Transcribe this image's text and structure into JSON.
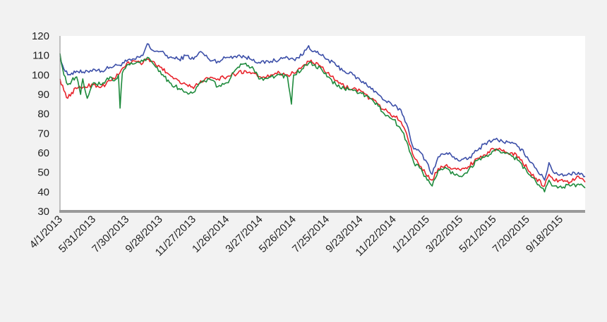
{
  "chart_data": {
    "type": "line",
    "ylim": [
      30,
      120
    ],
    "yticks": [
      "30",
      "40",
      "50",
      "60",
      "70",
      "80",
      "90",
      "100",
      "110",
      "120"
    ],
    "xlim": [
      "2013-04-01",
      "2015-11-01"
    ],
    "xticks": [
      {
        "date": "2013-04-01",
        "label": "4/1/2013"
      },
      {
        "date": "2013-05-31",
        "label": "5/31/2013"
      },
      {
        "date": "2013-07-30",
        "label": "7/30/2013"
      },
      {
        "date": "2013-09-28",
        "label": "9/28/2013"
      },
      {
        "date": "2013-11-27",
        "label": "11/27/2013"
      },
      {
        "date": "2014-01-26",
        "label": "1/26/2014"
      },
      {
        "date": "2014-03-27",
        "label": "3/27/2014"
      },
      {
        "date": "2014-05-26",
        "label": "5/26/2014"
      },
      {
        "date": "2014-07-25",
        "label": "7/25/2014"
      },
      {
        "date": "2014-09-23",
        "label": "9/23/2014"
      },
      {
        "date": "2014-11-22",
        "label": "11/22/2014"
      },
      {
        "date": "2015-01-21",
        "label": "1/21/2015"
      },
      {
        "date": "2015-03-22",
        "label": "3/22/2015"
      },
      {
        "date": "2015-05-21",
        "label": "5/21/2015"
      },
      {
        "date": "2015-07-20",
        "label": "7/20/2015"
      },
      {
        "date": "2015-09-18",
        "label": "9/18/2015"
      }
    ],
    "grid": false,
    "legend": "none",
    "series": [
      {
        "color": "#3b4ea8",
        "points": [
          [
            "2013-04-01",
            110
          ],
          [
            "2013-04-08",
            103
          ],
          [
            "2013-04-15",
            100
          ],
          [
            "2013-04-22",
            101
          ],
          [
            "2013-05-01",
            102
          ],
          [
            "2013-05-15",
            101
          ],
          [
            "2013-05-31",
            103
          ],
          [
            "2013-06-15",
            102
          ],
          [
            "2013-06-30",
            104
          ],
          [
            "2013-07-15",
            105
          ],
          [
            "2013-07-30",
            107
          ],
          [
            "2013-08-15",
            108
          ],
          [
            "2013-08-28",
            110
          ],
          [
            "2013-09-05",
            116
          ],
          [
            "2013-09-12",
            113
          ],
          [
            "2013-09-28",
            112
          ],
          [
            "2013-10-15",
            109
          ],
          [
            "2013-11-01",
            108
          ],
          [
            "2013-11-15",
            110
          ],
          [
            "2013-11-27",
            108
          ],
          [
            "2013-12-10",
            112
          ],
          [
            "2013-12-25",
            108
          ],
          [
            "2014-01-10",
            107
          ],
          [
            "2014-01-26",
            109
          ],
          [
            "2014-02-15",
            110
          ],
          [
            "2014-03-01",
            109
          ],
          [
            "2014-03-15",
            108
          ],
          [
            "2014-03-27",
            106
          ],
          [
            "2014-04-15",
            107
          ],
          [
            "2014-05-01",
            108
          ],
          [
            "2014-05-15",
            109
          ],
          [
            "2014-05-26",
            108
          ],
          [
            "2014-06-10",
            110
          ],
          [
            "2014-06-22",
            115
          ],
          [
            "2014-07-01",
            112
          ],
          [
            "2014-07-15",
            110
          ],
          [
            "2014-07-25",
            108
          ],
          [
            "2014-08-10",
            105
          ],
          [
            "2014-08-25",
            102
          ],
          [
            "2014-09-10",
            100
          ],
          [
            "2014-09-23",
            97
          ],
          [
            "2014-10-10",
            94
          ],
          [
            "2014-10-25",
            90
          ],
          [
            "2014-11-05",
            87
          ],
          [
            "2014-11-22",
            84
          ],
          [
            "2014-12-05",
            82
          ],
          [
            "2014-12-15",
            75
          ],
          [
            "2014-12-28",
            62
          ],
          [
            "2015-01-10",
            60
          ],
          [
            "2015-01-21",
            55
          ],
          [
            "2015-01-30",
            49
          ],
          [
            "2015-02-10",
            58
          ],
          [
            "2015-02-25",
            60
          ],
          [
            "2015-03-10",
            58
          ],
          [
            "2015-03-22",
            56
          ],
          [
            "2015-04-05",
            57
          ],
          [
            "2015-04-20",
            61
          ],
          [
            "2015-05-05",
            65
          ],
          [
            "2015-05-21",
            67
          ],
          [
            "2015-06-05",
            66
          ],
          [
            "2015-06-20",
            65
          ],
          [
            "2015-07-05",
            63
          ],
          [
            "2015-07-20",
            58
          ],
          [
            "2015-08-05",
            52
          ],
          [
            "2015-08-20",
            46
          ],
          [
            "2015-08-28",
            55
          ],
          [
            "2015-09-05",
            50
          ],
          [
            "2015-09-18",
            49
          ],
          [
            "2015-10-05",
            49
          ],
          [
            "2015-10-20",
            50
          ],
          [
            "2015-11-01",
            48
          ]
        ]
      },
      {
        "color": "#e8222a",
        "points": [
          [
            "2013-04-01",
            98
          ],
          [
            "2013-04-08",
            92
          ],
          [
            "2013-04-15",
            88
          ],
          [
            "2013-04-22",
            91
          ],
          [
            "2013-05-01",
            93
          ],
          [
            "2013-05-15",
            94
          ],
          [
            "2013-05-31",
            95
          ],
          [
            "2013-06-15",
            94
          ],
          [
            "2013-06-30",
            97
          ],
          [
            "2013-07-15",
            100
          ],
          [
            "2013-07-30",
            106
          ],
          [
            "2013-08-15",
            107
          ],
          [
            "2013-08-28",
            106
          ],
          [
            "2013-09-05",
            108
          ],
          [
            "2013-09-12",
            107
          ],
          [
            "2013-09-28",
            104
          ],
          [
            "2013-10-15",
            100
          ],
          [
            "2013-11-01",
            97
          ],
          [
            "2013-11-15",
            95
          ],
          [
            "2013-11-27",
            93
          ],
          [
            "2013-12-10",
            97
          ],
          [
            "2013-12-25",
            98
          ],
          [
            "2014-01-10",
            98
          ],
          [
            "2014-01-26",
            99
          ],
          [
            "2014-02-15",
            101
          ],
          [
            "2014-03-01",
            102
          ],
          [
            "2014-03-15",
            101
          ],
          [
            "2014-03-27",
            99
          ],
          [
            "2014-04-15",
            100
          ],
          [
            "2014-05-01",
            101
          ],
          [
            "2014-05-15",
            100
          ],
          [
            "2014-05-26",
            101
          ],
          [
            "2014-06-10",
            104
          ],
          [
            "2014-06-22",
            107
          ],
          [
            "2014-07-01",
            106
          ],
          [
            "2014-07-15",
            104
          ],
          [
            "2014-07-25",
            101
          ],
          [
            "2014-08-10",
            97
          ],
          [
            "2014-08-25",
            94
          ],
          [
            "2014-09-10",
            93
          ],
          [
            "2014-09-23",
            92
          ],
          [
            "2014-10-10",
            88
          ],
          [
            "2014-10-25",
            85
          ],
          [
            "2014-11-05",
            82
          ],
          [
            "2014-11-22",
            79
          ],
          [
            "2014-12-05",
            76
          ],
          [
            "2014-12-15",
            70
          ],
          [
            "2014-12-28",
            58
          ],
          [
            "2015-01-10",
            53
          ],
          [
            "2015-01-21",
            48
          ],
          [
            "2015-01-30",
            46
          ],
          [
            "2015-02-10",
            52
          ],
          [
            "2015-02-25",
            54
          ],
          [
            "2015-03-10",
            52
          ],
          [
            "2015-03-22",
            51
          ],
          [
            "2015-04-05",
            53
          ],
          [
            "2015-04-20",
            57
          ],
          [
            "2015-05-05",
            59
          ],
          [
            "2015-05-21",
            62
          ],
          [
            "2015-06-05",
            61
          ],
          [
            "2015-06-20",
            60
          ],
          [
            "2015-07-05",
            58
          ],
          [
            "2015-07-20",
            52
          ],
          [
            "2015-08-05",
            47
          ],
          [
            "2015-08-20",
            43
          ],
          [
            "2015-08-28",
            49
          ],
          [
            "2015-09-05",
            46
          ],
          [
            "2015-09-18",
            46
          ],
          [
            "2015-10-05",
            45
          ],
          [
            "2015-10-20",
            48
          ],
          [
            "2015-11-01",
            45
          ]
        ]
      },
      {
        "color": "#1e8a3c",
        "points": [
          [
            "2013-04-01",
            111
          ],
          [
            "2013-04-08",
            100
          ],
          [
            "2013-04-15",
            95
          ],
          [
            "2013-04-22",
            97
          ],
          [
            "2013-05-01",
            99
          ],
          [
            "2013-05-08",
            90
          ],
          [
            "2013-05-12",
            98
          ],
          [
            "2013-05-20",
            88
          ],
          [
            "2013-05-31",
            96
          ],
          [
            "2013-06-15",
            95
          ],
          [
            "2013-06-30",
            99
          ],
          [
            "2013-07-08",
            97
          ],
          [
            "2013-07-15",
            100
          ],
          [
            "2013-07-18",
            83
          ],
          [
            "2013-07-22",
            101
          ],
          [
            "2013-07-30",
            105
          ],
          [
            "2013-08-15",
            106
          ],
          [
            "2013-08-28",
            107
          ],
          [
            "2013-09-05",
            109
          ],
          [
            "2013-09-12",
            107
          ],
          [
            "2013-09-28",
            102
          ],
          [
            "2013-10-15",
            96
          ],
          [
            "2013-11-01",
            93
          ],
          [
            "2013-11-15",
            91
          ],
          [
            "2013-11-27",
            91
          ],
          [
            "2013-12-10",
            96
          ],
          [
            "2013-12-25",
            98
          ],
          [
            "2014-01-10",
            94
          ],
          [
            "2014-01-26",
            96
          ],
          [
            "2014-02-15",
            104
          ],
          [
            "2014-03-01",
            106
          ],
          [
            "2014-03-15",
            103
          ],
          [
            "2014-03-27",
            98
          ],
          [
            "2014-04-15",
            99
          ],
          [
            "2014-05-01",
            100
          ],
          [
            "2014-05-15",
            99
          ],
          [
            "2014-05-22",
            85
          ],
          [
            "2014-05-26",
            100
          ],
          [
            "2014-06-10",
            103
          ],
          [
            "2014-06-22",
            106
          ],
          [
            "2014-07-01",
            105
          ],
          [
            "2014-07-15",
            103
          ],
          [
            "2014-07-25",
            99
          ],
          [
            "2014-08-10",
            95
          ],
          [
            "2014-08-25",
            93
          ],
          [
            "2014-09-10",
            92
          ],
          [
            "2014-09-23",
            91
          ],
          [
            "2014-10-10",
            88
          ],
          [
            "2014-10-25",
            84
          ],
          [
            "2014-11-05",
            80
          ],
          [
            "2014-11-22",
            77
          ],
          [
            "2014-12-05",
            72
          ],
          [
            "2014-12-15",
            66
          ],
          [
            "2014-12-28",
            55
          ],
          [
            "2015-01-10",
            52
          ],
          [
            "2015-01-21",
            46
          ],
          [
            "2015-01-30",
            43
          ],
          [
            "2015-02-10",
            51
          ],
          [
            "2015-02-25",
            52
          ],
          [
            "2015-03-10",
            49
          ],
          [
            "2015-03-22",
            48
          ],
          [
            "2015-04-05",
            51
          ],
          [
            "2015-04-20",
            56
          ],
          [
            "2015-05-05",
            58
          ],
          [
            "2015-05-21",
            61
          ],
          [
            "2015-06-05",
            60
          ],
          [
            "2015-06-20",
            59
          ],
          [
            "2015-07-05",
            56
          ],
          [
            "2015-07-20",
            50
          ],
          [
            "2015-08-05",
            45
          ],
          [
            "2015-08-20",
            40
          ],
          [
            "2015-08-28",
            46
          ],
          [
            "2015-09-05",
            43
          ],
          [
            "2015-09-18",
            43
          ],
          [
            "2015-10-05",
            43
          ],
          [
            "2015-10-20",
            44
          ],
          [
            "2015-11-01",
            42
          ]
        ]
      }
    ]
  }
}
